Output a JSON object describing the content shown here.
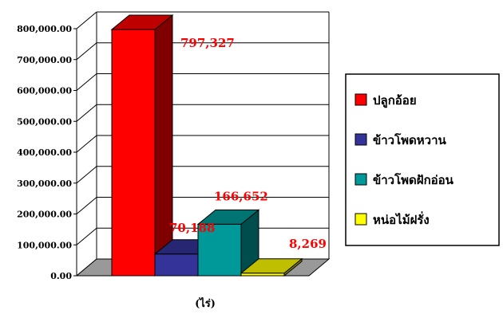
{
  "chart_data": {
    "type": "bar",
    "style": "3d",
    "title": "",
    "xlabel": "(ไร่)",
    "ylabel": "",
    "ylim": [
      0,
      800000
    ],
    "y_tick_labels": [
      "0.00",
      "100,000.00",
      "200,000.00",
      "300,000.00",
      "400,000.00",
      "500,000.00",
      "600,000.00",
      "700,000.00",
      "800,000.00"
    ],
    "y_ticks": [
      0,
      100000,
      200000,
      300000,
      400000,
      500000,
      600000,
      700000,
      800000
    ],
    "grid": true,
    "legend_position": "right",
    "series": [
      {
        "name": "ปลูกอ้อย",
        "value": 797327,
        "label": "797,327",
        "color": "#ff0000"
      },
      {
        "name": "ข้าวโพดหวาน",
        "value": 70188,
        "label": "70,188",
        "color": "#333399"
      },
      {
        "name": "ข้าวโพดฝักอ่อน",
        "value": 166652,
        "label": "166,652",
        "color": "#009999"
      },
      {
        "name": "หน่อไม้ฝรั่ง",
        "value": 8269,
        "label": "8,269",
        "color": "#ffff00"
      }
    ],
    "data_label_color": "#ff0000"
  }
}
